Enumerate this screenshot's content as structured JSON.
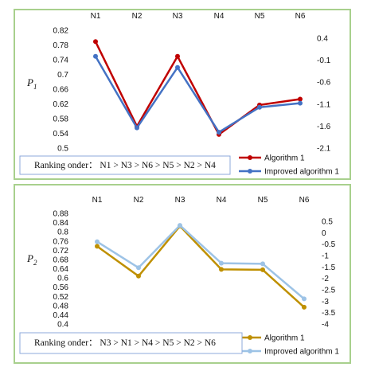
{
  "colors": {
    "panel_border": "#a8d08d",
    "rank_box_border": "#8ea9db",
    "algo1_top": "#c00000",
    "improved_top": "#4472c4",
    "algo1_bottom": "#bf9000",
    "improved_bottom": "#9dc3e6"
  },
  "chart_data": [
    {
      "type": "line",
      "ylabel": "P",
      "ylabel_sub": "1",
      "categories": [
        "N1",
        "N2",
        "N3",
        "N4",
        "N5",
        "N6"
      ],
      "left_ticks": [
        "0.82",
        "0.78",
        "0.74",
        "0.7",
        "0.66",
        "0.62",
        "0.58",
        "0.54",
        "0.5"
      ],
      "right_ticks": [
        "0.4",
        "-0.1",
        "-0.6",
        "-1.1",
        "-1.6",
        "-2.1"
      ],
      "ylim": [
        0.5,
        0.82
      ],
      "series": [
        {
          "name": "Algorithm 1",
          "color": "#c00000",
          "values": [
            0.789,
            0.559,
            0.749,
            0.537,
            0.617,
            0.633
          ]
        },
        {
          "name": "Improved algorithm 1",
          "color": "#4472c4",
          "values": [
            0.749,
            0.555,
            0.719,
            0.543,
            0.611,
            0.622
          ]
        }
      ],
      "ranking": "Ranking onder： N1 > N3 > N6 > N5 > N2 > N4",
      "legend_position": "bottom-right"
    },
    {
      "type": "line",
      "ylabel": "P",
      "ylabel_sub": "2",
      "categories": [
        "N1",
        "N2",
        "N3",
        "N4",
        "N5",
        "N6"
      ],
      "left_ticks": [
        "0.88",
        "0.84",
        "0.8",
        "0.76",
        "0.72",
        "0.68",
        "0.64",
        "0.6",
        "0.56",
        "0.52",
        "0.48",
        "0.44",
        "0.4"
      ],
      "right_ticks": [
        "0.5",
        "0",
        "-0.5",
        "-1",
        "-1.5",
        "-2",
        "-2.5",
        "-3",
        "-3.5",
        "-4"
      ],
      "ylim": [
        0.4,
        0.88
      ],
      "series": [
        {
          "name": "Algorithm 1",
          "color": "#bf9000",
          "values": [
            0.737,
            0.608,
            0.825,
            0.637,
            0.635,
            0.473
          ]
        },
        {
          "name": "Improved algorithm 1",
          "color": "#9dc3e6",
          "values": [
            0.757,
            0.644,
            0.828,
            0.664,
            0.661,
            0.509
          ]
        }
      ],
      "ranking": "Ranking onder： N3 > N1 > N4 > N5 > N2 > N6",
      "legend_position": "bottom-right"
    }
  ]
}
